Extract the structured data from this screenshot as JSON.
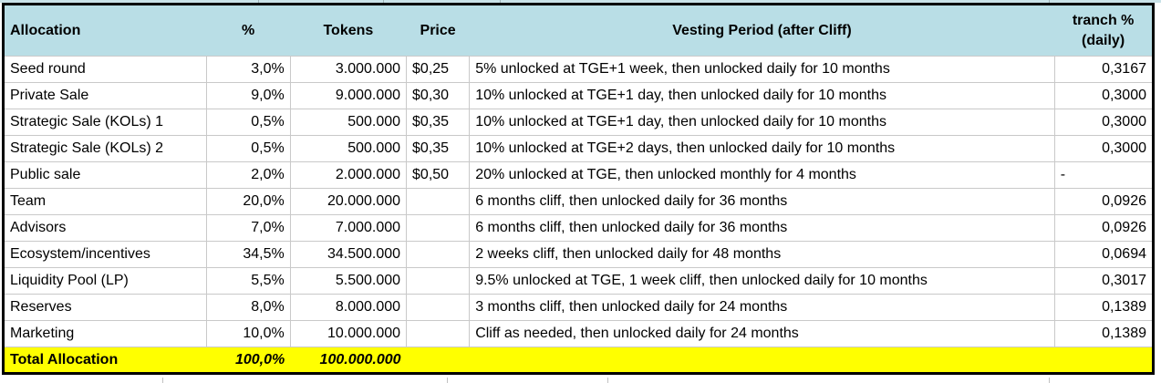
{
  "table": {
    "columns": [
      {
        "key": "allocation",
        "label": "Allocation"
      },
      {
        "key": "pct",
        "label": "%"
      },
      {
        "key": "tokens",
        "label": "Tokens"
      },
      {
        "key": "price",
        "label": "Price"
      },
      {
        "key": "vesting",
        "label": "Vesting Period (after Cliff)"
      },
      {
        "key": "tranch",
        "label": "tranch %",
        "label2": "(daily)"
      }
    ],
    "rows": [
      {
        "allocation": "Seed round",
        "pct": "3,0%",
        "tokens": "3.000.000",
        "price": "$0,25",
        "vesting": "5% unlocked at TGE+1 week, then unlocked daily for 10 months",
        "tranch": "0,3167"
      },
      {
        "allocation": "Private Sale",
        "pct": "9,0%",
        "tokens": "9.000.000",
        "price": "$0,30",
        "vesting": "10% unlocked at TGE+1 day, then unlocked daily for 10 months",
        "tranch": "0,3000"
      },
      {
        "allocation": "Strategic Sale (KOLs) 1",
        "pct": "0,5%",
        "tokens": "500.000",
        "price": "$0,35",
        "vesting": "10% unlocked at TGE+1 day, then unlocked daily for 10 months",
        "tranch": "0,3000"
      },
      {
        "allocation": "Strategic Sale (KOLs) 2",
        "pct": "0,5%",
        "tokens": "500.000",
        "price": "$0,35",
        "vesting": "10% unlocked at TGE+2 days, then unlocked daily for 10 months",
        "tranch": "0,3000"
      },
      {
        "allocation": "Public sale",
        "pct": "2,0%",
        "tokens": "2.000.000",
        "price": "$0,50",
        "vesting": "20% unlocked at TGE, then unlocked monthly for 4 months",
        "tranch": "-"
      },
      {
        "allocation": "Team",
        "pct": "20,0%",
        "tokens": "20.000.000",
        "price": "",
        "vesting": "6 months cliff, then unlocked daily for 36 months",
        "tranch": "0,0926"
      },
      {
        "allocation": "Advisors",
        "pct": "7,0%",
        "tokens": "7.000.000",
        "price": "",
        "vesting": "6 months cliff, then unlocked daily for 36 months",
        "tranch": "0,0926"
      },
      {
        "allocation": "Ecosystem/incentives",
        "pct": "34,5%",
        "tokens": "34.500.000",
        "price": "",
        "vesting": "2 weeks cliff, then unlocked daily for 48 months",
        "tranch": "0,0694"
      },
      {
        "allocation": "Liquidity Pool (LP)",
        "pct": "5,5%",
        "tokens": "5.500.000",
        "price": "",
        "vesting": "9.5% unlocked at TGE, 1 week cliff, then unlocked daily for 10 months",
        "tranch": "0,3017"
      },
      {
        "allocation": "Reserves",
        "pct": "8,0%",
        "tokens": "8.000.000",
        "price": "",
        "vesting": "3 months cliff, then unlocked daily for 24 months",
        "tranch": "0,1389"
      },
      {
        "allocation": "Marketing",
        "pct": "10,0%",
        "tokens": "10.000.000",
        "price": "",
        "vesting": "Cliff as needed, then unlocked daily for 24 months",
        "tranch": "0,1389"
      }
    ],
    "total": {
      "label": "Total Allocation",
      "pct": "100,0%",
      "tokens": "100.000.000",
      "price": "",
      "vesting": "",
      "tranch": ""
    }
  },
  "colors": {
    "header_bg": "#b9dee6",
    "total_bg": "#ffff00",
    "outer_border": "#000000",
    "gridline": "#c9c9c9"
  }
}
